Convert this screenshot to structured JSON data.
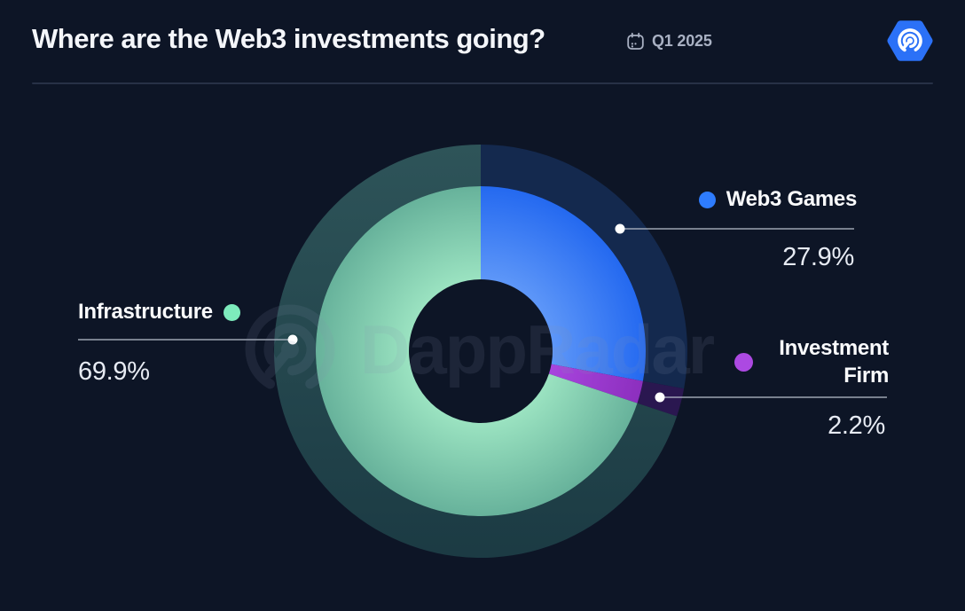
{
  "header": {
    "title": "Where are the Web3 investments going?",
    "period": "Q1 2025"
  },
  "watermark": {
    "text": "DappRadar"
  },
  "chart_data": {
    "type": "pie",
    "title": "Where are the Web3 investments going?",
    "period": "Q1 2025",
    "style": "donut with muted echo outer ring",
    "start_angle_deg": 0,
    "direction": "clockwise",
    "segments": [
      {
        "id": "web3-games",
        "label": "Web3 Games",
        "value_pct": 27.9,
        "color": "#2E7CFE",
        "color_inner": "#5E97F8",
        "color_outer": "#2469F0",
        "echo_color": "#14294E"
      },
      {
        "id": "investment-firm",
        "label": "Investment Firm",
        "value_pct": 2.2,
        "color": "#AC49E2",
        "color_inner": "#A33FD9",
        "color_outer": "#8C2FBE",
        "echo_color": "#2A1750"
      },
      {
        "id": "infrastructure",
        "label": "Infrastructure",
        "value_pct": 69.9,
        "color": "#7DEBBC",
        "color_inner": "#9BE3C1",
        "color_outer": "#67B29B",
        "echo_color": "#2C5156"
      }
    ],
    "legend_position": "callouts around donut",
    "background": "#0D1526"
  },
  "callouts": {
    "web3_games": {
      "label": "Web3 Games",
      "pct": "27.9%"
    },
    "infrastructure": {
      "label": "Infrastructure",
      "pct": "69.9%"
    },
    "investment_firm": {
      "label_line1": "Investment",
      "label_line2": "Firm",
      "pct": "2.2%"
    }
  },
  "colors": {
    "background": "#0D1526",
    "title_text": "#F4F6FA",
    "period_text": "#A9B1C3",
    "divider": "#273146",
    "percent_text": "#E7EBF3",
    "leader_line": "#B9C0CC",
    "logo_blue": "#2B71F7"
  }
}
